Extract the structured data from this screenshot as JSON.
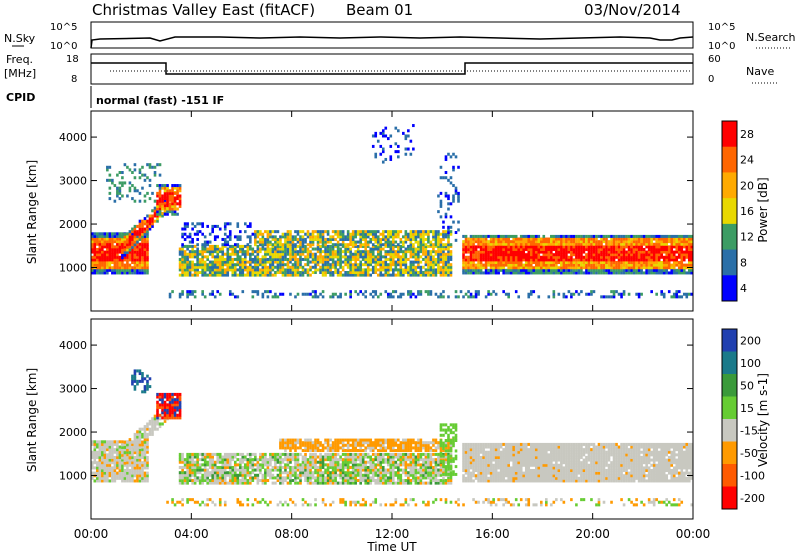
{
  "header": {
    "title": "Christmas Valley East (fitACF)",
    "beam": "Beam 01",
    "date": "03/Nov/2014"
  },
  "nsky_panel": {
    "left_label": "N.Sky",
    "right_label": "N.Search",
    "left_ticks": [
      "10^5",
      "10^0"
    ],
    "right_ticks": [
      "10^5",
      "10^0"
    ]
  },
  "freq_panel": {
    "left_label_line1": "Freq.",
    "left_label_line2": "[MHz]",
    "right_label": "Nave",
    "left_ticks": [
      "18",
      "8"
    ],
    "right_ticks": [
      "60",
      "0"
    ]
  },
  "cpid": {
    "label": "CPID",
    "value": "normal (fast) -151 IF"
  },
  "chart_data": [
    {
      "type": "heatmap",
      "title": "",
      "xlabel": "Time UT",
      "ylabel": "Slant Range [km]",
      "x_ticks": [
        "00:00",
        "04:00",
        "08:00",
        "12:00",
        "16:00",
        "20:00",
        "00:00"
      ],
      "y_ticks": [
        "4000",
        "3000",
        "2000",
        "1000"
      ],
      "colorbar_label": "Power [dB]",
      "colorbar_ticks": [
        "28",
        "24",
        "20",
        "16",
        "12",
        "8",
        "4"
      ],
      "colorbar_colors": [
        "#ff0000",
        "#ff6600",
        "#ffaa00",
        "#e8d800",
        "#3c9c64",
        "#2a6fa8",
        "#0000ff"
      ]
    },
    {
      "type": "heatmap",
      "title": "",
      "xlabel": "Time UT",
      "ylabel": "Slant Range [km]",
      "x_ticks": [
        "00:00",
        "04:00",
        "08:00",
        "12:00",
        "16:00",
        "20:00",
        "00:00"
      ],
      "y_ticks": [
        "4000",
        "3000",
        "2000",
        "1000"
      ],
      "colorbar_label": "Velocity [m s-1]",
      "colorbar_ticks": [
        "200",
        "100",
        "50",
        "15",
        "-15",
        "-50",
        "-100",
        "-200"
      ],
      "colorbar_colors": [
        "#2040b0",
        "#1a7a8a",
        "#3a9a3a",
        "#66cc33",
        "#c8c8c0",
        "#ff9a00",
        "#ff5a00",
        "#ff0000"
      ]
    }
  ]
}
